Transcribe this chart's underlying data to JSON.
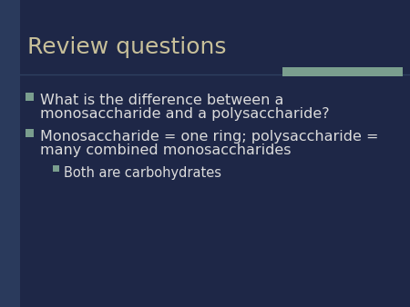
{
  "title": "Review questions",
  "title_color": "#c8c09a",
  "title_fontsize": 18,
  "bg_color": "#1e2747",
  "left_stripe_color": "#2a3a5c",
  "top_bar_color": "#7a9e8e",
  "bullet_color": "#7a9e8e",
  "text_color": "#dcdcdc",
  "bullet1_line1": "What is the difference between a",
  "bullet1_line2": "monosaccharide and a polysaccharide?",
  "bullet2_line1": "Monosaccharide = one ring; polysaccharide =",
  "bullet2_line2": "many combined monosaccharides",
  "subbullet1": "Both are carbohydrates",
  "bullet_fontsize": 11.5,
  "subbullet_fontsize": 10.5
}
